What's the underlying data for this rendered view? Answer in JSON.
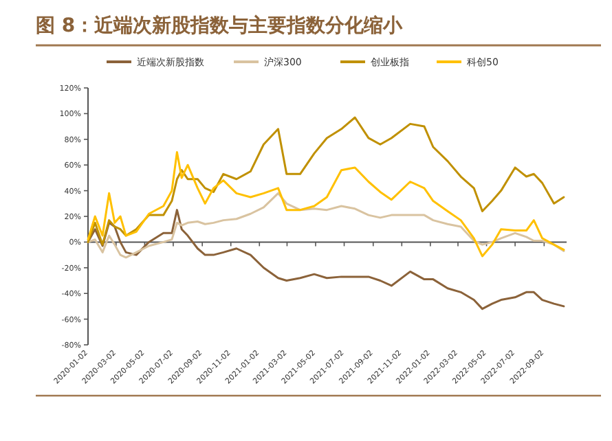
{
  "chart_data": {
    "type": "line",
    "title": "图 8：近端次新股指数与主要指数分化缩小",
    "x": [
      "2020-01-02",
      "2020-01-17",
      "2020-02-02",
      "2020-02-16",
      "2020-02-28",
      "2020-03-11",
      "2020-03-23",
      "2020-04-14",
      "2020-05-11",
      "2020-06-11",
      "2020-06-29",
      "2020-07-10",
      "2020-07-20",
      "2020-08-02",
      "2020-08-23",
      "2020-09-08",
      "2020-09-26",
      "2020-10-17",
      "2020-11-14",
      "2020-12-14",
      "2021-01-11",
      "2021-02-11",
      "2021-03-01",
      "2021-03-30",
      "2021-04-29",
      "2021-05-26",
      "2021-06-26",
      "2021-07-25",
      "2021-08-23",
      "2021-09-17",
      "2021-10-11",
      "2021-11-20",
      "2021-12-20",
      "2022-01-08",
      "2022-02-08",
      "2022-03-08",
      "2022-04-05",
      "2022-04-23",
      "2022-05-14",
      "2022-06-02",
      "2022-07-02",
      "2022-07-26",
      "2022-08-11",
      "2022-08-29",
      "2022-09-23",
      "2022-10-14"
    ],
    "series": [
      {
        "name": "近端次新股指数",
        "color": "#8b6239",
        "values": [
          0,
          10,
          -3,
          15,
          12,
          0,
          -8,
          -10,
          0,
          7,
          7,
          25,
          10,
          5,
          -5,
          -10,
          -10,
          -8,
          -5,
          -10,
          -20,
          -28,
          -30,
          -28,
          -25,
          -28,
          -27,
          -27,
          -27,
          -30,
          -34,
          -23,
          -29,
          -29,
          -36,
          -39,
          -45,
          -52,
          -48,
          -45,
          -43,
          -39,
          -39,
          -45,
          -48,
          -50
        ]
      },
      {
        "name": "沪深300",
        "color": "#d9c3a0",
        "values": [
          0,
          2,
          -8,
          5,
          -2,
          -10,
          -12,
          -8,
          -3,
          0,
          2,
          15,
          13,
          15,
          16,
          14,
          15,
          17,
          18,
          22,
          27,
          38,
          30,
          25,
          26,
          25,
          28,
          26,
          21,
          19,
          21,
          21,
          21,
          17,
          14,
          12,
          1,
          -2,
          0,
          3,
          7,
          4,
          1,
          1,
          -2,
          -7
        ]
      },
      {
        "name": "创业板指",
        "color": "#c09000",
        "values": [
          0,
          15,
          -2,
          17,
          12,
          10,
          5,
          10,
          21,
          21,
          32,
          49,
          56,
          49,
          49,
          42,
          39,
          53,
          49,
          55,
          76,
          88,
          53,
          53,
          69,
          81,
          88,
          97,
          81,
          76,
          81,
          92,
          90,
          74,
          63,
          51,
          42,
          24,
          32,
          40,
          58,
          51,
          53,
          46,
          30,
          35
        ]
      },
      {
        "name": "科创50",
        "color": "#ffc000",
        "values": [
          2,
          20,
          5,
          38,
          15,
          20,
          5,
          8,
          22,
          28,
          40,
          70,
          50,
          60,
          42,
          30,
          42,
          48,
          38,
          35,
          38,
          42,
          25,
          25,
          28,
          35,
          56,
          58,
          47,
          39,
          33,
          47,
          42,
          32,
          24,
          17,
          3,
          -11,
          -2,
          10,
          9,
          9,
          17,
          3,
          -2,
          -6
        ]
      }
    ],
    "xlim": [
      "2020-01-02",
      "2022-10-20"
    ],
    "xticks": [
      "2020-01-02",
      "2020-03-02",
      "2020-05-02",
      "2020-07-02",
      "2020-09-02",
      "2020-11-02",
      "2021-01-02",
      "2021-03-02",
      "2021-05-02",
      "2021-07-02",
      "2021-09-02",
      "2021-11-02",
      "2022-01-02",
      "2022-03-02",
      "2022-05-02",
      "2022-07-02",
      "2022-09-02"
    ],
    "ylim": [
      -80,
      120
    ],
    "yticks": [
      {
        "value": -80,
        "label": "-80%"
      },
      {
        "value": -60,
        "label": "-60%"
      },
      {
        "value": -40,
        "label": "-40%"
      },
      {
        "value": -20,
        "label": "-20%"
      },
      {
        "value": 0,
        "label": "0%"
      },
      {
        "value": 20,
        "label": "20%"
      },
      {
        "value": 40,
        "label": "40%"
      },
      {
        "value": 60,
        "label": "60%"
      },
      {
        "value": 80,
        "label": "80%"
      },
      {
        "value": 100,
        "label": "100%"
      },
      {
        "value": 120,
        "label": "120%"
      }
    ],
    "legend": "top",
    "marker": "none",
    "line_style": "solid"
  }
}
